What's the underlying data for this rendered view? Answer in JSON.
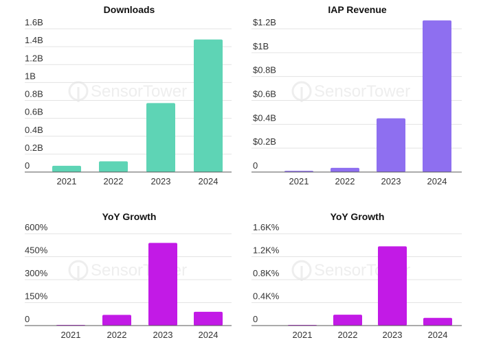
{
  "watermark": {
    "text": "SensorTower",
    "icon": "sensor-tower-logo-icon"
  },
  "chart_data": [
    {
      "id": "downloads",
      "type": "bar",
      "title": "Downloads",
      "categories": [
        "2021",
        "2022",
        "2023",
        "2024"
      ],
      "values": [
        0.07,
        0.12,
        0.77,
        1.48
      ],
      "unit": "billions",
      "yticks": [
        0,
        0.2,
        0.4,
        0.6,
        0.8,
        1.0,
        1.2,
        1.4,
        1.6
      ],
      "ytick_labels": [
        "0",
        "0.2B",
        "0.4B",
        "0.6B",
        "0.8B",
        "1B",
        "1.2B",
        "1.4B",
        "1.6B"
      ],
      "ylim": [
        0,
        1.6
      ],
      "color": "#5ed4b5",
      "xlabel": "",
      "ylabel": ""
    },
    {
      "id": "iap-revenue",
      "type": "bar",
      "title": "IAP Revenue",
      "categories": [
        "2021",
        "2022",
        "2023",
        "2024"
      ],
      "values": [
        0.01,
        0.035,
        0.45,
        1.27
      ],
      "unit": "USD billions",
      "yticks": [
        0,
        0.2,
        0.4,
        0.6,
        0.8,
        1.0,
        1.2
      ],
      "ytick_labels": [
        "0",
        "$0.2B",
        "$0.4B",
        "$0.6B",
        "$0.8B",
        "$1B",
        "$1.2B"
      ],
      "ylim": [
        0,
        1.3
      ],
      "color": "#8e6ff0",
      "xlabel": "",
      "ylabel": ""
    },
    {
      "id": "yoy-growth-downloads",
      "type": "bar",
      "title": "YoY Growth",
      "categories": [
        "2021",
        "2022",
        "2023",
        "2024"
      ],
      "values": [
        3,
        70,
        540,
        90
      ],
      "unit": "percent",
      "yticks": [
        0,
        150,
        300,
        450,
        600
      ],
      "ytick_labels": [
        "0",
        "150%",
        "300%",
        "450%",
        "600%"
      ],
      "ylim": [
        0,
        600
      ],
      "color": "#c21ae6",
      "xlabel": "",
      "ylabel": ""
    },
    {
      "id": "yoy-growth-revenue",
      "type": "bar",
      "title": "YoY Growth",
      "categories": [
        "2021",
        "2022",
        "2023",
        "2024"
      ],
      "values": [
        10,
        190,
        1380,
        135
      ],
      "unit": "percent",
      "yticks": [
        0,
        400,
        800,
        1200,
        1600
      ],
      "ytick_labels": [
        "0",
        "0.4K%",
        "0.8K%",
        "1.2K%",
        "1.6K%"
      ],
      "ylim": [
        0,
        1600
      ],
      "color": "#c21ae6",
      "xlabel": "",
      "ylabel": ""
    }
  ]
}
